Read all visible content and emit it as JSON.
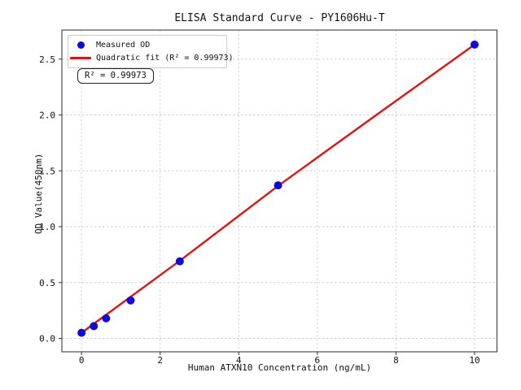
{
  "chart_data": {
    "type": "scatter",
    "title": "ELISA Standard Curve - PY1606Hu-T",
    "xlabel": "Human ATXN10 Concentration (ng/mL)",
    "ylabel": "OD Value(450nm)",
    "x_tick_labels": [
      "0",
      "2",
      "4",
      "6",
      "8",
      "10"
    ],
    "y_tick_labels": [
      "0.0",
      "0.5",
      "1.0",
      "1.5",
      "2.0",
      "2.5"
    ],
    "xlim": [
      -0.5,
      10.57
    ],
    "ylim": [
      -0.12,
      2.76
    ],
    "grid": true,
    "grid_color": "#cfcfcf",
    "frame_color": "#3c3c3c",
    "series": [
      {
        "name": "Measured OD",
        "type": "scatter",
        "marker": "circle",
        "color": "#0b0bdd",
        "x": [
          0,
          0.313,
          0.625,
          1.25,
          2.5,
          5,
          10
        ],
        "y": [
          0.05,
          0.11,
          0.18,
          0.34,
          0.69,
          1.37,
          2.63
        ]
      },
      {
        "name": "Quadratic fit",
        "type": "line",
        "color": "#e31212",
        "x": [
          0,
          2.5,
          5,
          7.5,
          10
        ],
        "y": [
          0.05,
          0.695,
          1.365,
          2.0,
          2.63
        ]
      }
    ],
    "legend": {
      "position": "upper-left",
      "entries": [
        {
          "label": "Measured OD"
        },
        {
          "label": "Quadratic fit (R² = 0.99973)"
        }
      ]
    },
    "annotation": "R² = 0.99973"
  }
}
